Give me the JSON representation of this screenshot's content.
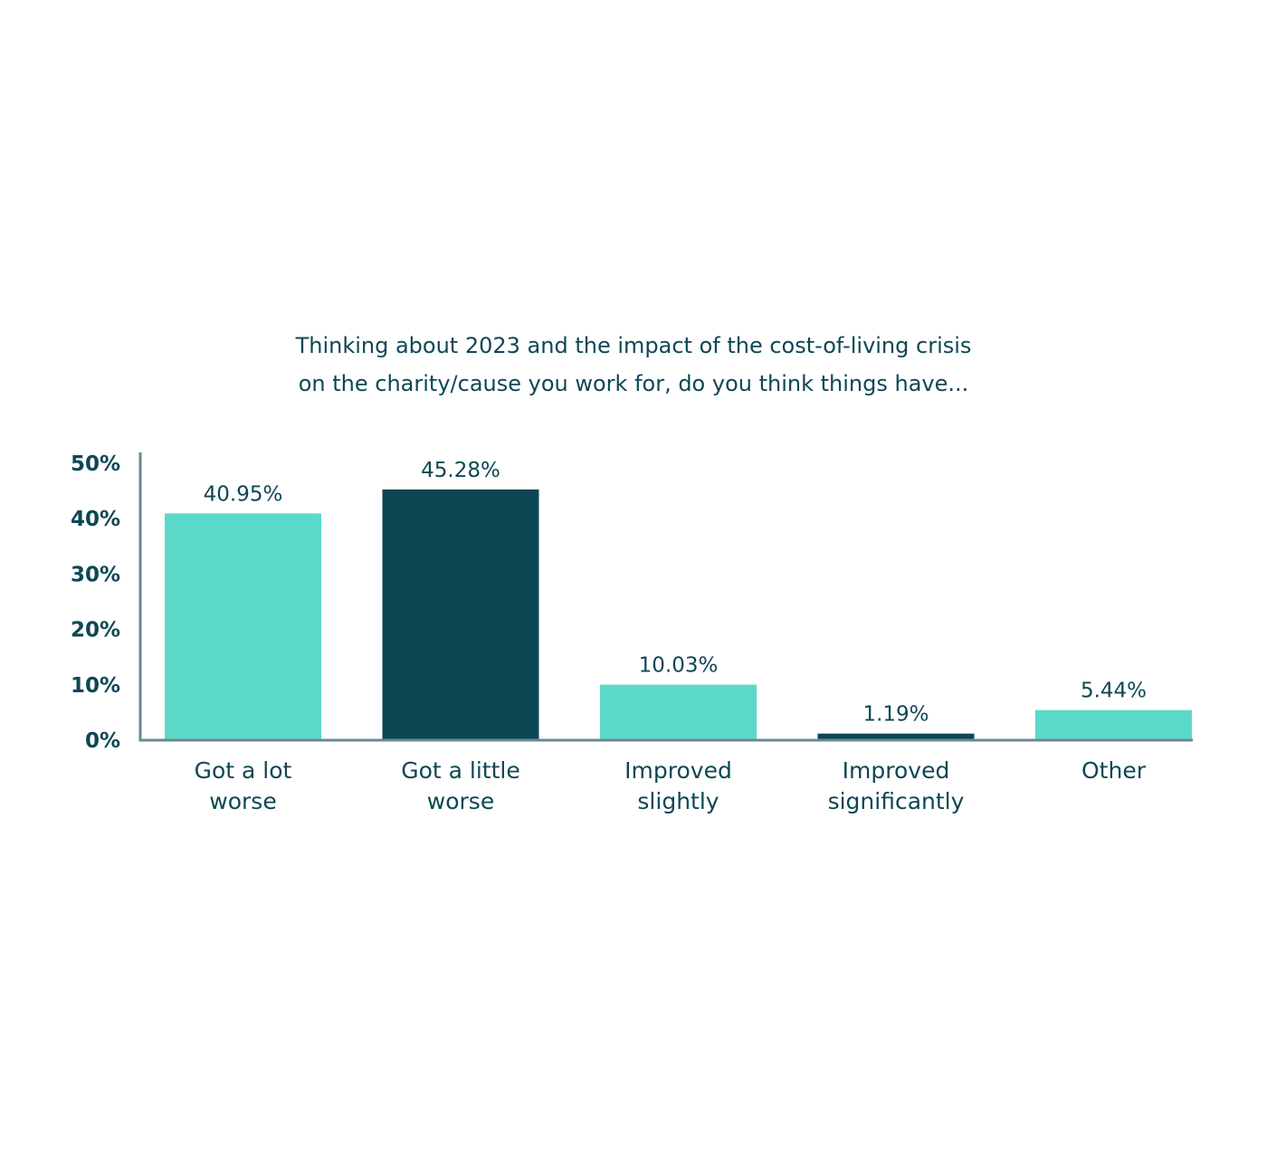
{
  "chart_data": {
    "type": "bar",
    "title_lines": [
      "Thinking about 2023 and the impact of the cost-of-living crisis",
      "on the charity/cause you work for, do you think things have..."
    ],
    "categories": [
      [
        "Got a lot",
        "worse"
      ],
      [
        "Got a little",
        "worse"
      ],
      [
        "Improved",
        "slightly"
      ],
      [
        "Improved",
        "significantly"
      ],
      [
        "Other"
      ]
    ],
    "values": [
      40.95,
      45.28,
      10.03,
      1.19,
      5.44
    ],
    "value_labels": [
      "40.95%",
      "45.28%",
      "10.03%",
      "1.19%",
      "5.44%"
    ],
    "bar_colors": [
      "#5ad9c8",
      "#0e4754",
      "#5ad9c8",
      "#0e4754",
      "#5ad9c8"
    ],
    "ylim": [
      0,
      50
    ],
    "yticks": [
      0,
      10,
      20,
      30,
      40,
      50
    ],
    "ytick_labels": [
      "0%",
      "10%",
      "20%",
      "30%",
      "40%",
      "50%"
    ],
    "axis_color": "#6b8a8f",
    "text_color": "#0e4754",
    "grid": false,
    "legend": false
  }
}
